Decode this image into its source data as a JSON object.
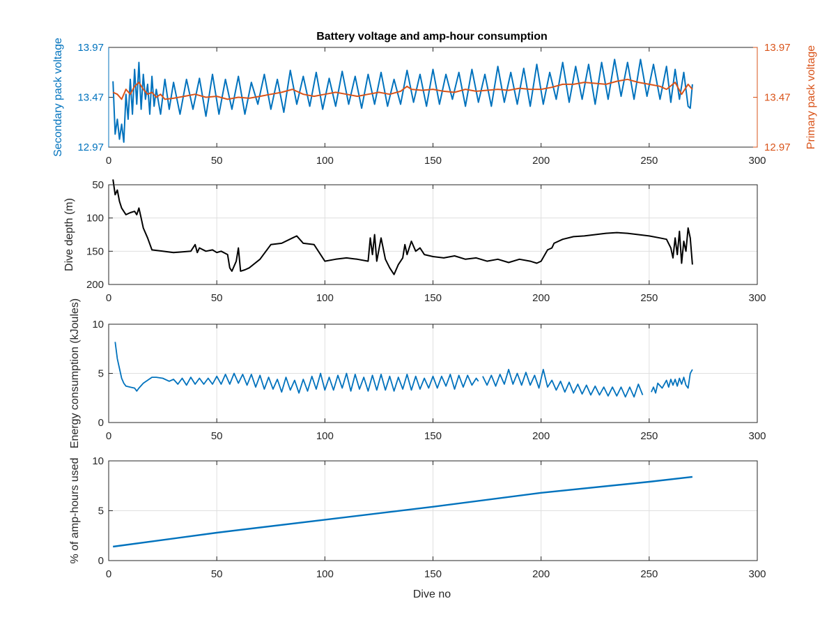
{
  "figure": {
    "title": "Battery voltage and amp-hour consumption",
    "xlabel": "Dive no"
  },
  "colors": {
    "secondary": "#0072bd",
    "primary": "#d95319",
    "depth": "#000000",
    "energy": "#0072bd",
    "amphours": "#0072bd",
    "axis": "#262626",
    "grid": "#dfdfdf"
  },
  "chart_data": [
    {
      "type": "line",
      "title": "Battery voltage and amp-hour consumption",
      "xlabel": "",
      "ylabel": "Secondary pack voltage",
      "ylabel_right": "Primary pack voltage",
      "xlim": [
        0,
        300
      ],
      "ylim": [
        12.97,
        13.97
      ],
      "ylim_right": [
        12.97,
        13.97
      ],
      "xticks": [
        "0",
        "50",
        "100",
        "150",
        "200",
        "250",
        "300"
      ],
      "yticks": [
        "12.97",
        "13.47",
        "13.97"
      ],
      "yticks_right": [
        "12.97",
        "13.47",
        "13.97"
      ],
      "grid": false,
      "series": [
        {
          "axis": "left",
          "x": [
            2,
            3,
            4,
            5,
            6,
            7,
            8,
            9,
            10,
            11,
            12,
            13,
            14,
            15,
            16,
            17,
            18,
            19,
            20,
            21,
            22,
            24,
            26,
            28,
            30,
            33,
            36,
            39,
            42,
            45,
            48,
            51,
            54,
            57,
            60,
            63,
            66,
            69,
            72,
            75,
            78,
            81,
            84,
            87,
            90,
            93,
            96,
            99,
            102,
            105,
            108,
            111,
            114,
            117,
            120,
            123,
            126,
            129,
            132,
            135,
            138,
            141,
            144,
            147,
            150,
            153,
            156,
            159,
            162,
            165,
            168,
            171,
            174,
            177,
            180,
            183,
            186,
            189,
            192,
            195,
            198,
            201,
            204,
            207,
            210,
            213,
            216,
            219,
            222,
            225,
            228,
            231,
            234,
            237,
            240,
            243,
            246,
            249,
            252,
            255,
            258,
            260,
            262,
            264,
            266,
            268,
            269,
            270
          ],
          "y": [
            13.63,
            13.1,
            13.25,
            13.05,
            13.2,
            13.02,
            13.5,
            13.25,
            13.65,
            13.3,
            13.75,
            13.4,
            13.82,
            13.35,
            13.7,
            13.45,
            13.6,
            13.3,
            13.68,
            13.38,
            13.55,
            13.3,
            13.65,
            13.35,
            13.62,
            13.3,
            13.65,
            13.35,
            13.66,
            13.28,
            13.7,
            13.3,
            13.65,
            13.35,
            13.68,
            13.3,
            13.62,
            13.4,
            13.7,
            13.35,
            13.65,
            13.32,
            13.74,
            13.4,
            13.68,
            13.38,
            13.72,
            13.35,
            13.66,
            13.38,
            13.73,
            13.4,
            13.68,
            13.36,
            13.7,
            13.4,
            13.72,
            13.38,
            13.65,
            13.4,
            13.74,
            13.42,
            13.7,
            13.38,
            13.75,
            13.4,
            13.7,
            13.45,
            13.72,
            13.38,
            13.75,
            13.42,
            13.7,
            13.38,
            13.78,
            13.42,
            13.72,
            13.4,
            13.76,
            13.38,
            13.8,
            13.4,
            13.72,
            13.45,
            13.82,
            13.42,
            13.78,
            13.45,
            13.8,
            13.4,
            13.82,
            13.45,
            13.85,
            13.48,
            13.82,
            13.45,
            13.85,
            13.48,
            13.8,
            13.45,
            13.78,
            13.42,
            13.75,
            13.45,
            13.72,
            13.38,
            13.36,
            13.6
          ]
        },
        {
          "axis": "right",
          "x": [
            2,
            4,
            6,
            8,
            10,
            12,
            14,
            16,
            18,
            20,
            22,
            24,
            26,
            30,
            35,
            40,
            45,
            50,
            55,
            60,
            65,
            70,
            75,
            80,
            85,
            90,
            95,
            100,
            105,
            110,
            115,
            120,
            125,
            130,
            135,
            138,
            140,
            145,
            150,
            155,
            160,
            165,
            170,
            175,
            180,
            185,
            190,
            195,
            200,
            205,
            210,
            215,
            220,
            225,
            230,
            235,
            240,
            245,
            250,
            255,
            258,
            262,
            265,
            268,
            270
          ],
          "y": [
            13.52,
            13.5,
            13.45,
            13.55,
            13.5,
            13.58,
            13.62,
            13.55,
            13.5,
            13.52,
            13.47,
            13.5,
            13.45,
            13.46,
            13.48,
            13.5,
            13.47,
            13.48,
            13.45,
            13.47,
            13.46,
            13.48,
            13.5,
            13.52,
            13.55,
            13.5,
            13.48,
            13.5,
            13.52,
            13.5,
            13.48,
            13.5,
            13.52,
            13.5,
            13.53,
            13.58,
            13.55,
            13.54,
            13.55,
            13.53,
            13.52,
            13.55,
            13.53,
            13.54,
            13.55,
            13.54,
            13.56,
            13.55,
            13.55,
            13.57,
            13.6,
            13.6,
            13.62,
            13.61,
            13.6,
            13.63,
            13.65,
            13.62,
            13.6,
            13.58,
            13.55,
            13.62,
            13.5,
            13.6,
            13.55
          ]
        }
      ]
    },
    {
      "type": "line",
      "title": "",
      "xlabel": "",
      "ylabel": "Dive depth (m)",
      "xlim": [
        0,
        300
      ],
      "ylim": [
        50,
        200
      ],
      "y_reversed": true,
      "xticks": [
        "0",
        "50",
        "100",
        "150",
        "200",
        "250",
        "300"
      ],
      "yticks": [
        "50",
        "100",
        "150",
        "200"
      ],
      "grid": true,
      "series": [
        {
          "x": [
            2,
            3,
            4,
            5,
            6,
            8,
            10,
            12,
            13,
            14,
            15,
            16,
            18,
            20,
            25,
            30,
            38,
            40,
            41,
            42,
            45,
            48,
            50,
            52,
            55,
            56,
            57,
            59,
            60,
            61,
            63,
            65,
            70,
            75,
            80,
            85,
            87,
            90,
            95,
            100,
            105,
            110,
            115,
            120,
            121,
            122,
            123,
            124,
            126,
            128,
            130,
            132,
            134,
            136,
            137,
            138,
            140,
            142,
            144,
            146,
            150,
            155,
            160,
            165,
            170,
            175,
            180,
            185,
            190,
            195,
            198,
            200,
            203,
            205,
            206,
            210,
            215,
            220,
            225,
            230,
            235,
            240,
            245,
            250,
            255,
            258,
            260,
            261,
            262,
            263,
            264,
            265,
            266,
            267,
            268,
            269,
            270
          ],
          "y": [
            42,
            65,
            58,
            75,
            85,
            95,
            92,
            90,
            95,
            85,
            100,
            115,
            130,
            148,
            150,
            152,
            150,
            140,
            152,
            145,
            150,
            148,
            152,
            150,
            155,
            175,
            180,
            165,
            145,
            180,
            178,
            175,
            162,
            140,
            138,
            130,
            127,
            138,
            140,
            165,
            162,
            160,
            162,
            165,
            130,
            155,
            125,
            165,
            130,
            162,
            175,
            185,
            170,
            160,
            140,
            155,
            135,
            150,
            145,
            155,
            158,
            160,
            157,
            162,
            160,
            165,
            162,
            167,
            162,
            165,
            168,
            165,
            148,
            145,
            138,
            132,
            128,
            127,
            125,
            123,
            122,
            123,
            125,
            127,
            130,
            132,
            145,
            160,
            130,
            155,
            120,
            168,
            135,
            150,
            115,
            130,
            170
          ]
        }
      ]
    },
    {
      "type": "line",
      "title": "",
      "xlabel": "",
      "ylabel": "Energy consumption (kJoules)",
      "xlim": [
        0,
        300
      ],
      "ylim": [
        0,
        10
      ],
      "xticks": [
        "0",
        "50",
        "100",
        "150",
        "200",
        "250",
        "300"
      ],
      "yticks": [
        "0",
        "5",
        "10"
      ],
      "grid": true,
      "series": [
        {
          "x": [
            3,
            4,
            5,
            6,
            7,
            8,
            10,
            12,
            13,
            14,
            16,
            18,
            20,
            22,
            25,
            28,
            30,
            32,
            34,
            36,
            38,
            40,
            42,
            44,
            46,
            48,
            50,
            52,
            54,
            56,
            58,
            60,
            62,
            64,
            66,
            68,
            70,
            72,
            74,
            76,
            78,
            80,
            82,
            84,
            86,
            88,
            90,
            92,
            94,
            96,
            98,
            100,
            102,
            104,
            106,
            108,
            110,
            112,
            114,
            116,
            118,
            120,
            122,
            124,
            126,
            128,
            130,
            132,
            134,
            136,
            138,
            140,
            142,
            144,
            146,
            148,
            150,
            152,
            154,
            156,
            158,
            160,
            162,
            164,
            166,
            168,
            170,
            171
          ],
          "y": [
            8.2,
            6.5,
            5.5,
            4.5,
            4.0,
            3.7,
            3.6,
            3.5,
            3.2,
            3.5,
            4.0,
            4.3,
            4.6,
            4.6,
            4.5,
            4.2,
            4.4,
            3.9,
            4.5,
            3.8,
            4.6,
            3.9,
            4.5,
            3.9,
            4.5,
            3.9,
            4.7,
            3.9,
            4.9,
            3.9,
            5.0,
            4.0,
            4.9,
            3.8,
            4.9,
            3.6,
            4.8,
            3.4,
            4.6,
            3.4,
            4.4,
            3.1,
            4.6,
            3.3,
            4.3,
            3.0,
            4.4,
            3.2,
            4.7,
            3.4,
            5.0,
            3.3,
            4.6,
            3.3,
            4.8,
            3.5,
            5.0,
            3.2,
            4.9,
            3.4,
            4.6,
            3.2,
            4.8,
            3.3,
            4.9,
            3.3,
            4.7,
            3.2,
            4.6,
            3.4,
            4.9,
            3.3,
            4.7,
            3.4,
            4.5,
            3.5,
            4.7,
            3.5,
            4.7,
            3.7,
            4.9,
            3.4,
            4.8,
            3.6,
            4.8,
            3.8,
            4.5,
            4.2
          ]
        },
        {
          "x": [
            173,
            175,
            177,
            179,
            181,
            183,
            185,
            187,
            189,
            191,
            193,
            195,
            197,
            199,
            201,
            203,
            205,
            207,
            209,
            211,
            213,
            215,
            217,
            219,
            221,
            223,
            225,
            227,
            229,
            231,
            233,
            235,
            237,
            239,
            241,
            243,
            245,
            247
          ],
          "y": [
            4.7,
            3.8,
            4.8,
            3.7,
            4.9,
            3.9,
            5.4,
            3.9,
            5.0,
            3.8,
            5.1,
            3.8,
            4.8,
            3.5,
            5.4,
            3.6,
            4.3,
            3.3,
            4.2,
            3.1,
            4.1,
            3.0,
            3.9,
            2.9,
            3.8,
            2.8,
            3.7,
            2.8,
            3.6,
            2.7,
            3.6,
            2.7,
            3.6,
            2.6,
            3.6,
            2.6,
            3.9,
            2.8
          ]
        },
        {
          "x": [
            251,
            252,
            253,
            254,
            256,
            258,
            259,
            260,
            261,
            262,
            263,
            264,
            265,
            266,
            267,
            268,
            269,
            270
          ],
          "y": [
            3.1,
            3.6,
            3.0,
            4.0,
            3.5,
            4.3,
            3.6,
            4.4,
            3.8,
            4.4,
            3.7,
            4.5,
            3.9,
            4.6,
            3.8,
            3.5,
            5.0,
            5.4
          ]
        }
      ]
    },
    {
      "type": "line",
      "title": "",
      "xlabel": "Dive no",
      "ylabel": "% of amp-hours used",
      "xlim": [
        0,
        300
      ],
      "ylim": [
        0,
        10
      ],
      "xticks": [
        "0",
        "50",
        "100",
        "150",
        "200",
        "250",
        "300"
      ],
      "yticks": [
        "0",
        "5",
        "10"
      ],
      "grid": true,
      "series": [
        {
          "x": [
            2,
            50,
            100,
            150,
            200,
            250,
            270
          ],
          "y": [
            1.4,
            2.8,
            4.1,
            5.4,
            6.8,
            7.9,
            8.4
          ]
        }
      ]
    }
  ]
}
